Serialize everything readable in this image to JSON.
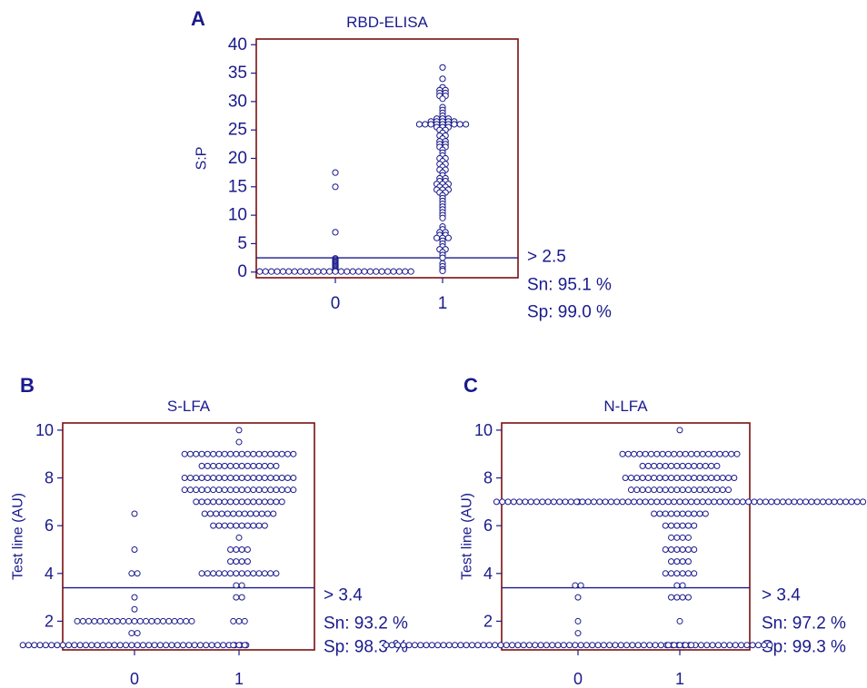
{
  "colors": {
    "navy": "#1a1a8c",
    "frame": "#7a1010",
    "marker_fill": "#ffffff"
  },
  "chart_data": [
    {
      "type": "scatter",
      "panel_label": "A",
      "title": "RBD-ELISA",
      "xlabel": "",
      "ylabel": "S:P",
      "categories": [
        "0",
        "1"
      ],
      "ylim": [
        -1,
        41
      ],
      "yticks": [
        0,
        5,
        10,
        15,
        20,
        25,
        30,
        35,
        40
      ],
      "grid": false,
      "cutoff": 2.5,
      "annotations": [
        "> 2.5",
        "Sn: 95.1 %",
        "Sp: 99.0 %"
      ],
      "series": [
        {
          "category": "0",
          "values": [
            17.5,
            15,
            7,
            2.4,
            2.2,
            2.0,
            1.8,
            1.6,
            1.4,
            1.2,
            1.0,
            0.8,
            0.6,
            0.4,
            0.2,
            0.1,
            0.1,
            0.1,
            0.1,
            0.1,
            0.1,
            0.1,
            0.1,
            0.1,
            0.1,
            0.1,
            0.1,
            0.1,
            0.1,
            0.1,
            0.1,
            0.1,
            0.1,
            0.1,
            0.1,
            0.1,
            0.1,
            0.1,
            0.1,
            0.1,
            0.1,
            0.1
          ]
        },
        {
          "category": "1",
          "values": [
            36,
            34,
            32.5,
            32,
            32,
            31.5,
            31.5,
            31,
            31,
            30.5,
            29,
            28.5,
            28,
            27.5,
            27,
            27,
            27,
            26.5,
            26.5,
            26.5,
            26.5,
            26.5,
            26,
            26,
            26,
            26,
            26,
            26,
            26,
            26,
            26,
            25.5,
            25.5,
            25.5,
            25,
            25,
            24.5,
            24,
            24,
            23.5,
            23,
            23,
            22.5,
            22.5,
            22,
            22,
            21.5,
            21,
            20.5,
            20,
            20,
            19.5,
            19,
            19,
            18.5,
            18,
            18,
            17.5,
            17,
            16.5,
            16.5,
            16,
            16,
            15.5,
            15.5,
            15.5,
            15,
            15,
            14.5,
            14.5,
            14.5,
            14,
            14,
            13.5,
            13,
            12.5,
            12,
            11.5,
            11,
            10.5,
            10,
            9.5,
            8,
            7.5,
            7,
            7,
            6.5,
            6.5,
            6,
            6,
            6,
            5.5,
            5,
            4.5,
            4,
            4,
            3.5,
            3,
            2.5,
            1.5,
            1,
            0.5,
            0.2
          ]
        }
      ]
    },
    {
      "type": "scatter",
      "panel_label": "B",
      "title": "S-LFA",
      "xlabel": "",
      "ylabel": "Test line (AU)",
      "categories": [
        "0",
        "1"
      ],
      "ylim": [
        0.8,
        10.3
      ],
      "yticks": [
        2,
        4,
        6,
        8,
        10
      ],
      "grid": false,
      "cutoff": 3.4,
      "annotations": [
        "> 3.4",
        "Sn: 93.2 %",
        "Sp: 98.3 %"
      ],
      "series": [
        {
          "category": "0",
          "values": [
            6.5,
            5,
            4,
            4,
            3,
            2.5,
            2,
            2,
            2,
            2,
            2,
            2,
            2,
            2,
            2,
            2,
            2,
            2,
            2,
            2,
            2,
            2,
            2,
            2,
            2,
            2,
            2,
            1.5,
            1.5,
            1,
            1,
            1,
            1,
            1,
            1,
            1,
            1,
            1,
            1,
            1,
            1,
            1,
            1,
            1,
            1,
            1,
            1,
            1,
            1,
            1,
            1,
            1,
            1,
            1,
            1,
            1,
            1,
            1,
            1,
            1,
            1,
            1,
            1,
            1,
            1,
            1,
            1,
            1,
            1
          ]
        },
        {
          "category": "1",
          "values": [
            10,
            9.5,
            9,
            9,
            9,
            9,
            9,
            9,
            9,
            9,
            9,
            9,
            9,
            9,
            9,
            9,
            9,
            9,
            9,
            9,
            9,
            9,
            8.5,
            8.5,
            8.5,
            8.5,
            8.5,
            8.5,
            8.5,
            8.5,
            8.5,
            8.5,
            8.5,
            8.5,
            8.5,
            8.5,
            8,
            8,
            8,
            8,
            8,
            8,
            8,
            8,
            8,
            8,
            8,
            8,
            8,
            8,
            8,
            8,
            8,
            8,
            8,
            8,
            7.5,
            7.5,
            7.5,
            7.5,
            7.5,
            7.5,
            7.5,
            7.5,
            7.5,
            7.5,
            7.5,
            7.5,
            7.5,
            7.5,
            7.5,
            7.5,
            7.5,
            7.5,
            7.5,
            7.5,
            7,
            7,
            7,
            7,
            7,
            7,
            7,
            7,
            7,
            7,
            7,
            7,
            7,
            7,
            7,
            7,
            6.5,
            6.5,
            6.5,
            6.5,
            6.5,
            6.5,
            6.5,
            6.5,
            6.5,
            6.5,
            6.5,
            6.5,
            6.5,
            6,
            6,
            6,
            6,
            6,
            6,
            6,
            6,
            6,
            6,
            5.5,
            5,
            5,
            5,
            5,
            4.5,
            4.5,
            4.5,
            4.5,
            4,
            4,
            4,
            4,
            4,
            4,
            4,
            4,
            4,
            4,
            4,
            4,
            4,
            4,
            3.5,
            3.5,
            3,
            3,
            2,
            2,
            2,
            1,
            1,
            1
          ]
        }
      ]
    },
    {
      "type": "scatter",
      "panel_label": "C",
      "title": "N-LFA",
      "xlabel": "",
      "ylabel": "Test line (AU)",
      "categories": [
        "0",
        "1"
      ],
      "ylim": [
        0.8,
        10.3
      ],
      "yticks": [
        2,
        4,
        6,
        8,
        10
      ],
      "grid": false,
      "cutoff": 3.4,
      "annotations": [
        "> 3.4",
        "Sn: 97.2 %",
        "Sp: 99.3 %"
      ],
      "series": [
        {
          "category": "0",
          "values": [
            7,
            3.5,
            3.5,
            3,
            2,
            1.5,
            1,
            1,
            1,
            1,
            1,
            1,
            1,
            1,
            1,
            1,
            1,
            1,
            1,
            1,
            1,
            1,
            1,
            1,
            1,
            1,
            1,
            1,
            1,
            1,
            1,
            1,
            1,
            1,
            1,
            1,
            1,
            1,
            1,
            1,
            1,
            1,
            1,
            1,
            1,
            1,
            1,
            1,
            1,
            1,
            1,
            1,
            1,
            1,
            1,
            1,
            1,
            1,
            1,
            1,
            1,
            1,
            1,
            1,
            1,
            1,
            1,
            1,
            1,
            1,
            1,
            1,
            1,
            1
          ]
        },
        {
          "category": "1",
          "values": [
            10,
            9,
            9,
            9,
            9,
            9,
            9,
            9,
            9,
            9,
            9,
            9,
            9,
            9,
            9,
            9,
            9,
            9,
            9,
            9,
            9,
            9,
            8.5,
            8.5,
            8.5,
            8.5,
            8.5,
            8.5,
            8.5,
            8.5,
            8.5,
            8.5,
            8.5,
            8.5,
            8.5,
            8.5,
            8,
            8,
            8,
            8,
            8,
            8,
            8,
            8,
            8,
            8,
            8,
            8,
            8,
            8,
            8,
            8,
            8,
            8,
            8,
            8,
            7.5,
            7.5,
            7.5,
            7.5,
            7.5,
            7.5,
            7.5,
            7.5,
            7.5,
            7.5,
            7.5,
            7.5,
            7.5,
            7.5,
            7.5,
            7.5,
            7.5,
            7.5,
            7,
            7,
            7,
            7,
            7,
            7,
            7,
            7,
            7,
            7,
            7,
            7,
            7,
            7,
            7,
            7,
            7,
            7,
            7,
            7,
            7,
            7,
            7,
            7,
            7,
            7,
            7,
            7,
            7,
            7,
            7,
            7,
            7,
            7,
            7,
            7,
            7,
            7,
            7,
            7,
            7,
            7,
            7,
            7,
            7,
            7,
            7,
            7,
            7,
            7,
            7,
            7,
            7,
            7,
            7,
            7,
            7,
            7,
            7,
            7,
            7,
            7,
            7,
            7,
            7,
            6.5,
            6.5,
            6.5,
            6.5,
            6.5,
            6.5,
            6.5,
            6.5,
            6.5,
            6.5,
            6,
            6,
            6,
            6,
            6,
            6,
            5.5,
            5.5,
            5.5,
            5.5,
            5,
            5,
            5,
            5,
            5,
            5,
            4.5,
            4.5,
            4.5,
            4.5,
            4,
            4,
            4,
            4,
            4,
            4,
            3.5,
            3.5,
            3,
            3,
            3,
            3,
            2,
            1,
            1,
            1,
            1,
            1
          ]
        }
      ]
    }
  ]
}
